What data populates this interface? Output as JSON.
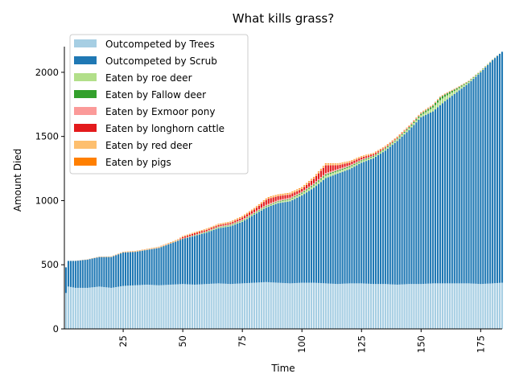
{
  "chart_data": {
    "type": "bar",
    "stacked": true,
    "title": "What kills grass?",
    "xlabel": "Time",
    "ylabel": "Amount Died",
    "xlim": [
      1,
      184
    ],
    "ylim": [
      0,
      2200
    ],
    "xticks": [
      25,
      50,
      75,
      100,
      125,
      150,
      175
    ],
    "yticks": [
      0,
      500,
      1000,
      1500,
      2000
    ],
    "legend_position": "top-left",
    "grid": false,
    "series": [
      {
        "name": "Outcompeted by Trees",
        "color": "#a6cee3",
        "keyframes": [
          [
            1,
            280
          ],
          [
            2,
            330
          ],
          [
            5,
            320
          ],
          [
            10,
            320
          ],
          [
            15,
            330
          ],
          [
            20,
            320
          ],
          [
            25,
            335
          ],
          [
            30,
            340
          ],
          [
            35,
            345
          ],
          [
            40,
            340
          ],
          [
            45,
            345
          ],
          [
            50,
            350
          ],
          [
            55,
            345
          ],
          [
            60,
            350
          ],
          [
            65,
            355
          ],
          [
            70,
            350
          ],
          [
            75,
            355
          ],
          [
            80,
            360
          ],
          [
            85,
            365
          ],
          [
            90,
            360
          ],
          [
            95,
            355
          ],
          [
            100,
            360
          ],
          [
            105,
            360
          ],
          [
            110,
            355
          ],
          [
            115,
            350
          ],
          [
            120,
            355
          ],
          [
            125,
            355
          ],
          [
            130,
            350
          ],
          [
            135,
            350
          ],
          [
            140,
            345
          ],
          [
            145,
            350
          ],
          [
            150,
            350
          ],
          [
            155,
            355
          ],
          [
            160,
            355
          ],
          [
            165,
            355
          ],
          [
            170,
            355
          ],
          [
            175,
            350
          ],
          [
            180,
            355
          ],
          [
            184,
            360
          ]
        ]
      },
      {
        "name": "Outcompeted by Scrub",
        "color": "#1f78b4",
        "keyframes": [
          [
            1,
            200
          ],
          [
            2,
            200
          ],
          [
            5,
            210
          ],
          [
            10,
            220
          ],
          [
            15,
            230
          ],
          [
            20,
            240
          ],
          [
            25,
            260
          ],
          [
            30,
            260
          ],
          [
            35,
            270
          ],
          [
            40,
            290
          ],
          [
            45,
            320
          ],
          [
            50,
            350
          ],
          [
            55,
            380
          ],
          [
            60,
            400
          ],
          [
            65,
            430
          ],
          [
            70,
            450
          ],
          [
            75,
            480
          ],
          [
            80,
            530
          ],
          [
            85,
            580
          ],
          [
            90,
            620
          ],
          [
            95,
            640
          ],
          [
            100,
            680
          ],
          [
            105,
            740
          ],
          [
            110,
            820
          ],
          [
            115,
            860
          ],
          [
            120,
            890
          ],
          [
            125,
            940
          ],
          [
            130,
            980
          ],
          [
            135,
            1040
          ],
          [
            140,
            1120
          ],
          [
            145,
            1200
          ],
          [
            150,
            1300
          ],
          [
            155,
            1340
          ],
          [
            160,
            1420
          ],
          [
            165,
            1490
          ],
          [
            170,
            1560
          ],
          [
            175,
            1650
          ],
          [
            180,
            1740
          ],
          [
            184,
            1800
          ]
        ]
      },
      {
        "name": "Eaten by roe deer",
        "color": "#b2df8a",
        "keyframes": [
          [
            1,
            0
          ],
          [
            50,
            0
          ],
          [
            60,
            5
          ],
          [
            80,
            8
          ],
          [
            90,
            10
          ],
          [
            100,
            15
          ],
          [
            110,
            20
          ],
          [
            120,
            15
          ],
          [
            130,
            10
          ],
          [
            150,
            15
          ],
          [
            155,
            30
          ],
          [
            158,
            40
          ],
          [
            165,
            20
          ],
          [
            170,
            10
          ],
          [
            184,
            0
          ]
        ]
      },
      {
        "name": "Eaten by Fallow deer",
        "color": "#33a02c",
        "keyframes": [
          [
            1,
            0
          ],
          [
            50,
            2
          ],
          [
            70,
            4
          ],
          [
            90,
            5
          ],
          [
            100,
            8
          ],
          [
            110,
            10
          ],
          [
            120,
            8
          ],
          [
            140,
            6
          ],
          [
            155,
            15
          ],
          [
            158,
            20
          ],
          [
            165,
            10
          ],
          [
            170,
            5
          ],
          [
            184,
            0
          ]
        ]
      },
      {
        "name": "Eaten by Exmoor pony",
        "color": "#fb9a99",
        "keyframes": [
          [
            1,
            0
          ],
          [
            50,
            4
          ],
          [
            60,
            4
          ],
          [
            70,
            6
          ],
          [
            80,
            8
          ],
          [
            90,
            10
          ],
          [
            100,
            8
          ],
          [
            110,
            10
          ],
          [
            120,
            8
          ],
          [
            130,
            5
          ],
          [
            150,
            3
          ],
          [
            160,
            2
          ],
          [
            184,
            0
          ]
        ]
      },
      {
        "name": "Eaten by longhorn cattle",
        "color": "#e31a1c",
        "keyframes": [
          [
            1,
            0
          ],
          [
            48,
            0
          ],
          [
            50,
            10
          ],
          [
            55,
            12
          ],
          [
            60,
            10
          ],
          [
            70,
            10
          ],
          [
            80,
            20
          ],
          [
            86,
            40
          ],
          [
            90,
            30
          ],
          [
            100,
            20
          ],
          [
            105,
            35
          ],
          [
            110,
            60
          ],
          [
            115,
            30
          ],
          [
            120,
            20
          ],
          [
            125,
            15
          ],
          [
            130,
            10
          ],
          [
            135,
            5
          ],
          [
            150,
            2
          ],
          [
            184,
            0
          ]
        ]
      },
      {
        "name": "Eaten by red deer",
        "color": "#fdbf6f",
        "keyframes": [
          [
            1,
            0
          ],
          [
            50,
            4
          ],
          [
            70,
            6
          ],
          [
            90,
            8
          ],
          [
            110,
            10
          ],
          [
            120,
            8
          ],
          [
            140,
            5
          ],
          [
            160,
            3
          ],
          [
            184,
            0
          ]
        ]
      },
      {
        "name": "Eaten by pigs",
        "color": "#ff7f00",
        "keyframes": [
          [
            1,
            0
          ],
          [
            50,
            3
          ],
          [
            70,
            4
          ],
          [
            90,
            5
          ],
          [
            110,
            5
          ],
          [
            130,
            3
          ],
          [
            150,
            2
          ],
          [
            184,
            0
          ]
        ]
      }
    ]
  }
}
